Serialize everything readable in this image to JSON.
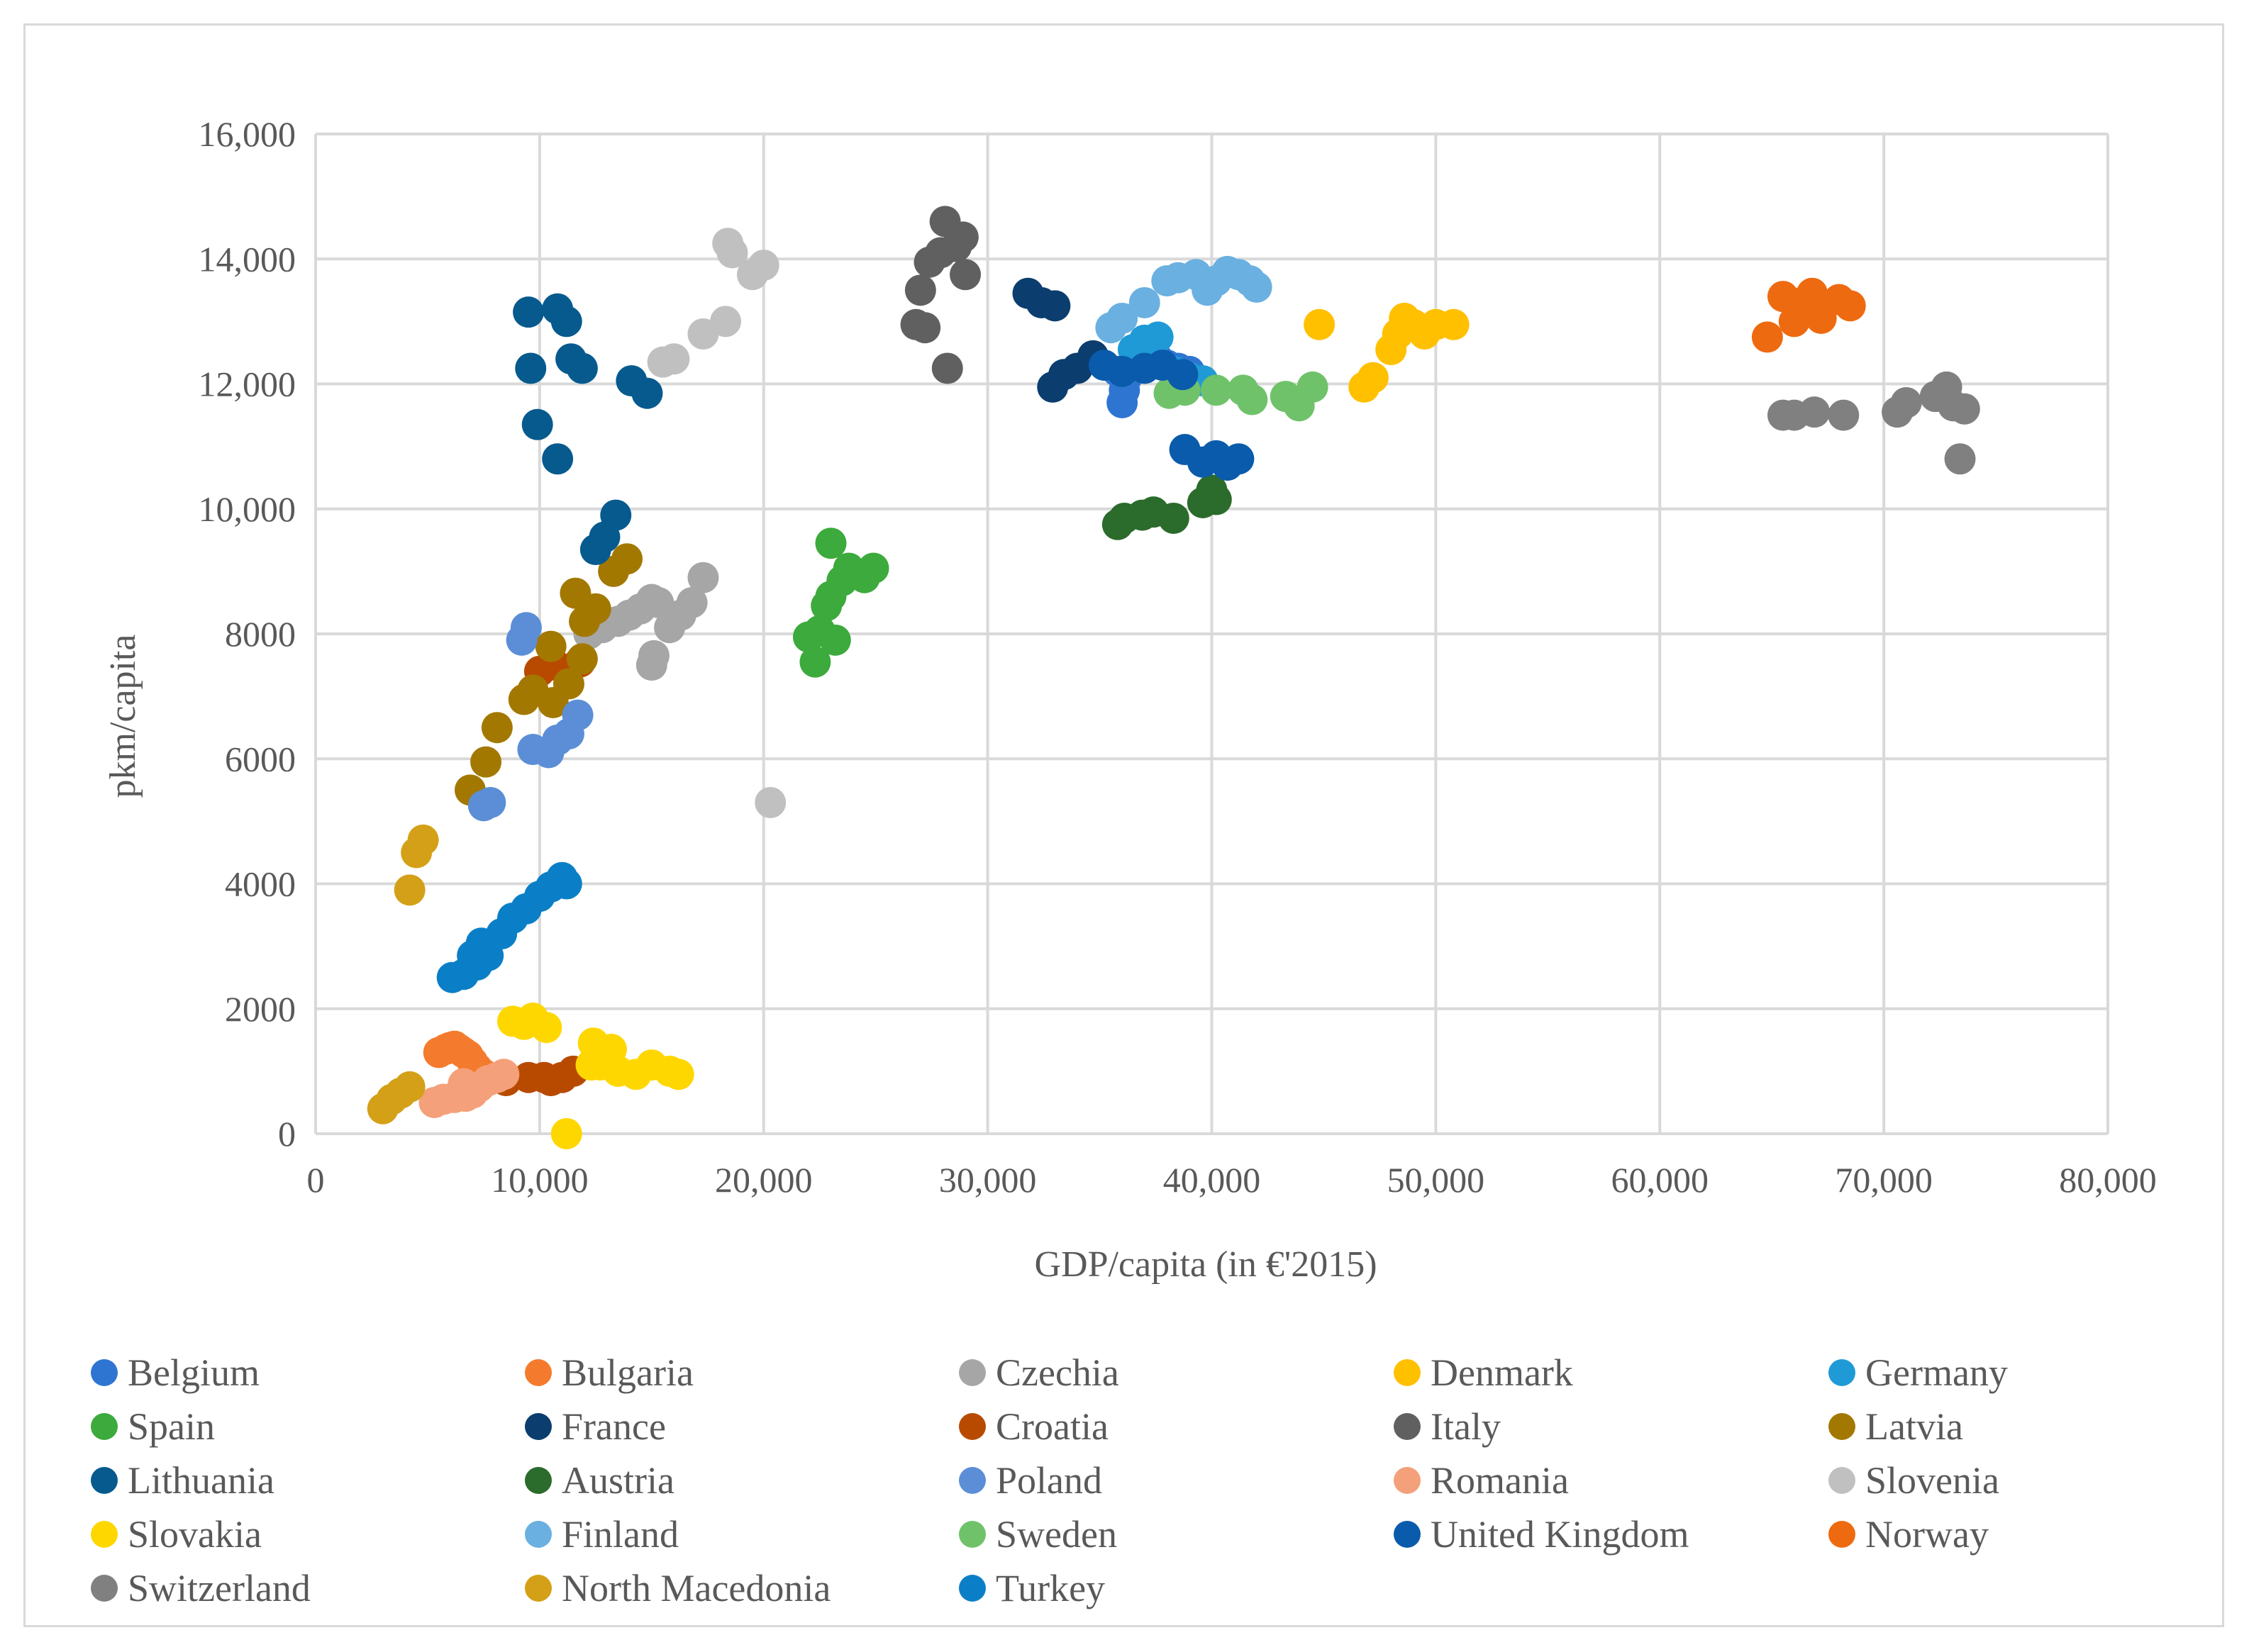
{
  "chart_data": {
    "type": "scatter",
    "title": "",
    "xlabel": "GDP/capita (in €'2015)",
    "ylabel": "pkm/capita",
    "xlim": [
      0,
      80000
    ],
    "ylim": [
      0,
      16000
    ],
    "grid": true,
    "legend_position": "bottom",
    "x_ticks": [
      {
        "value": 0,
        "label": "0"
      },
      {
        "value": 10000,
        "label": "10,000"
      },
      {
        "value": 20000,
        "label": "20,000"
      },
      {
        "value": 30000,
        "label": "30,000"
      },
      {
        "value": 40000,
        "label": "40,000"
      },
      {
        "value": 50000,
        "label": "50,000"
      },
      {
        "value": 60000,
        "label": "60,000"
      },
      {
        "value": 70000,
        "label": "70,000"
      },
      {
        "value": 80000,
        "label": "80,000"
      }
    ],
    "y_ticks": [
      {
        "value": 0,
        "label": "0"
      },
      {
        "value": 2000,
        "label": "2000"
      },
      {
        "value": 4000,
        "label": "4000"
      },
      {
        "value": 6000,
        "label": "6000"
      },
      {
        "value": 8000,
        "label": "8000"
      },
      {
        "value": 10000,
        "label": "10,000"
      },
      {
        "value": 12000,
        "label": "12,000"
      },
      {
        "value": 14000,
        "label": "14,000"
      },
      {
        "value": 16000,
        "label": "16,000"
      }
    ],
    "series": [
      {
        "name": "Belgium",
        "color": "#2e75d2",
        "points": [
          [
            36000,
            11700
          ],
          [
            36100,
            11900
          ],
          [
            36200,
            12100
          ],
          [
            36400,
            12250
          ],
          [
            36800,
            12300
          ],
          [
            37200,
            12350
          ],
          [
            37600,
            12400
          ],
          [
            38000,
            12300
          ],
          [
            38500,
            12250
          ],
          [
            39000,
            12200
          ],
          [
            35800,
            12200
          ]
        ]
      },
      {
        "name": "Bulgaria",
        "color": "#f47b2e",
        "points": [
          [
            5500,
            1300
          ],
          [
            5800,
            1350
          ],
          [
            6000,
            1380
          ],
          [
            6200,
            1400
          ],
          [
            6400,
            1350
          ],
          [
            6600,
            1300
          ],
          [
            6800,
            1250
          ],
          [
            7000,
            1150
          ],
          [
            7200,
            1050
          ],
          [
            7500,
            950
          ]
        ]
      },
      {
        "name": "Czechia",
        "color": "#a6a6a6",
        "points": [
          [
            12200,
            8000
          ],
          [
            12800,
            8100
          ],
          [
            13500,
            8200
          ],
          [
            14000,
            8300
          ],
          [
            14500,
            8400
          ],
          [
            15000,
            8550
          ],
          [
            15300,
            8500
          ],
          [
            15100,
            7650
          ],
          [
            15000,
            7500
          ],
          [
            15800,
            8100
          ],
          [
            16300,
            8300
          ],
          [
            16800,
            8500
          ],
          [
            17300,
            8900
          ]
        ]
      },
      {
        "name": "Denmark",
        "color": "#ffc000",
        "points": [
          [
            44800,
            12950
          ],
          [
            46800,
            11950
          ],
          [
            47200,
            12100
          ],
          [
            48000,
            12550
          ],
          [
            48300,
            12800
          ],
          [
            48600,
            13050
          ],
          [
            49000,
            12950
          ],
          [
            49500,
            12800
          ],
          [
            50000,
            12950
          ],
          [
            50800,
            12950
          ]
        ]
      },
      {
        "name": "Germany",
        "color": "#1f9ad6",
        "points": [
          [
            36500,
            12550
          ],
          [
            37000,
            12700
          ],
          [
            37600,
            12750
          ],
          [
            38300,
            12200
          ],
          [
            39000,
            12100
          ],
          [
            39600,
            12050
          ]
        ]
      },
      {
        "name": "Spain",
        "color": "#3caa3c",
        "points": [
          [
            22000,
            7950
          ],
          [
            22300,
            7550
          ],
          [
            22500,
            8050
          ],
          [
            22800,
            8450
          ],
          [
            23000,
            8600
          ],
          [
            23200,
            7900
          ],
          [
            23500,
            8850
          ],
          [
            23800,
            9050
          ],
          [
            24500,
            8900
          ],
          [
            24900,
            9050
          ],
          [
            23000,
            9450
          ]
        ]
      },
      {
        "name": "France",
        "color": "#0b3d6e",
        "points": [
          [
            31800,
            13450
          ],
          [
            32400,
            13300
          ],
          [
            33000,
            13250
          ],
          [
            32900,
            11950
          ],
          [
            33400,
            12150
          ],
          [
            34000,
            12250
          ],
          [
            34700,
            12450
          ]
        ]
      },
      {
        "name": "Croatia",
        "color": "#b84a00",
        "points": [
          [
            8500,
            850
          ],
          [
            9500,
            900
          ],
          [
            10200,
            900
          ],
          [
            10500,
            850
          ],
          [
            11000,
            900
          ],
          [
            11500,
            1000
          ],
          [
            10000,
            7400
          ],
          [
            10700,
            7500
          ],
          [
            11800,
            7550
          ]
        ]
      },
      {
        "name": "Italy",
        "color": "#606060",
        "points": [
          [
            26800,
            12950
          ],
          [
            27200,
            12900
          ],
          [
            27000,
            13500
          ],
          [
            27400,
            13950
          ],
          [
            27900,
            14100
          ],
          [
            28100,
            14600
          ],
          [
            28600,
            14200
          ],
          [
            29000,
            13750
          ],
          [
            28900,
            14350
          ],
          [
            28200,
            12250
          ]
        ]
      },
      {
        "name": "Latvia",
        "color": "#a37800",
        "points": [
          [
            6900,
            5500
          ],
          [
            7600,
            5950
          ],
          [
            8100,
            6500
          ],
          [
            9300,
            6950
          ],
          [
            9700,
            7100
          ],
          [
            10600,
            6900
          ],
          [
            11300,
            7200
          ],
          [
            10500,
            7800
          ],
          [
            11600,
            8650
          ],
          [
            12000,
            8200
          ],
          [
            12500,
            8400
          ],
          [
            13300,
            9000
          ],
          [
            13900,
            9200
          ],
          [
            11900,
            7600
          ]
        ]
      },
      {
        "name": "Lithuania",
        "color": "#065a8e",
        "points": [
          [
            9500,
            13150
          ],
          [
            10800,
            13200
          ],
          [
            11200,
            13000
          ],
          [
            11400,
            12400
          ],
          [
            11900,
            12250
          ],
          [
            9600,
            12250
          ],
          [
            9900,
            11350
          ],
          [
            10800,
            10800
          ],
          [
            14100,
            12050
          ],
          [
            14800,
            11850
          ],
          [
            12500,
            9350
          ],
          [
            12900,
            9550
          ],
          [
            13400,
            9900
          ]
        ]
      },
      {
        "name": "Austria",
        "color": "#2b6b2b",
        "points": [
          [
            35800,
            9750
          ],
          [
            36100,
            9850
          ],
          [
            36900,
            9900
          ],
          [
            37400,
            9950
          ],
          [
            38300,
            9850
          ],
          [
            39600,
            10100
          ],
          [
            40200,
            10150
          ],
          [
            40000,
            10300
          ]
        ]
      },
      {
        "name": "Poland",
        "color": "#5b8ed6",
        "points": [
          [
            7500,
            5250
          ],
          [
            7800,
            5300
          ],
          [
            9200,
            7900
          ],
          [
            9400,
            8100
          ],
          [
            9700,
            6150
          ],
          [
            10400,
            6100
          ],
          [
            10800,
            6300
          ],
          [
            11300,
            6400
          ],
          [
            11700,
            6700
          ]
        ]
      },
      {
        "name": "Romania",
        "color": "#f4a07a",
        "points": [
          [
            5300,
            500
          ],
          [
            5700,
            550
          ],
          [
            6200,
            580
          ],
          [
            6700,
            600
          ],
          [
            7000,
            650
          ],
          [
            7300,
            750
          ],
          [
            7700,
            850
          ],
          [
            8100,
            900
          ],
          [
            8400,
            950
          ],
          [
            6600,
            800
          ]
        ]
      },
      {
        "name": "Slovenia",
        "color": "#c0c0c0",
        "points": [
          [
            15500,
            12350
          ],
          [
            16000,
            12400
          ],
          [
            17300,
            12800
          ],
          [
            18300,
            13000
          ],
          [
            18400,
            14250
          ],
          [
            18600,
            14100
          ],
          [
            19500,
            13750
          ],
          [
            20000,
            13900
          ],
          [
            20300,
            5300
          ]
        ]
      },
      {
        "name": "Slovakia",
        "color": "#ffd700",
        "points": [
          [
            8800,
            1800
          ],
          [
            9300,
            1750
          ],
          [
            9700,
            1850
          ],
          [
            10300,
            1700
          ],
          [
            11200,
            0
          ],
          [
            12400,
            1450
          ],
          [
            12700,
            1100
          ],
          [
            13200,
            1350
          ],
          [
            13500,
            1000
          ],
          [
            14300,
            950
          ],
          [
            15000,
            1100
          ],
          [
            15800,
            1000
          ],
          [
            16200,
            950
          ],
          [
            12300,
            1100
          ]
        ]
      },
      {
        "name": "Finland",
        "color": "#6ab0e0",
        "points": [
          [
            35500,
            12900
          ],
          [
            36000,
            13050
          ],
          [
            37000,
            13300
          ],
          [
            38000,
            13650
          ],
          [
            38500,
            13700
          ],
          [
            39300,
            13750
          ],
          [
            40200,
            13650
          ],
          [
            40700,
            13800
          ],
          [
            41200,
            13750
          ],
          [
            41700,
            13650
          ],
          [
            42000,
            13550
          ],
          [
            39800,
            13500
          ]
        ]
      },
      {
        "name": "Sweden",
        "color": "#70c26a",
        "points": [
          [
            38100,
            11850
          ],
          [
            38800,
            11900
          ],
          [
            40200,
            11900
          ],
          [
            41400,
            11900
          ],
          [
            41800,
            11750
          ],
          [
            43300,
            11800
          ],
          [
            43900,
            11650
          ],
          [
            44500,
            11950
          ]
        ]
      },
      {
        "name": "United Kingdom",
        "color": "#0a5bab",
        "points": [
          [
            35200,
            12300
          ],
          [
            36000,
            12200
          ],
          [
            37000,
            12250
          ],
          [
            37800,
            12300
          ],
          [
            38700,
            12150
          ],
          [
            38800,
            10950
          ],
          [
            39600,
            10750
          ],
          [
            40200,
            10850
          ],
          [
            40700,
            10700
          ],
          [
            41200,
            10800
          ]
        ]
      },
      {
        "name": "Norway",
        "color": "#ee6a10",
        "points": [
          [
            64800,
            12750
          ],
          [
            65500,
            13400
          ],
          [
            66000,
            13000
          ],
          [
            66300,
            13300
          ],
          [
            66800,
            13450
          ],
          [
            67200,
            13050
          ],
          [
            68000,
            13350
          ],
          [
            68500,
            13250
          ]
        ]
      },
      {
        "name": "Switzerland",
        "color": "#808080",
        "points": [
          [
            65500,
            11500
          ],
          [
            66000,
            11500
          ],
          [
            66900,
            11550
          ],
          [
            68200,
            11500
          ],
          [
            70600,
            11550
          ],
          [
            71000,
            11700
          ],
          [
            72300,
            11800
          ],
          [
            72800,
            11950
          ],
          [
            73100,
            11650
          ],
          [
            73600,
            11600
          ],
          [
            73400,
            10800
          ]
        ]
      },
      {
        "name": "North Macedonia",
        "color": "#d4a017",
        "points": [
          [
            3000,
            400
          ],
          [
            3400,
            550
          ],
          [
            3800,
            650
          ],
          [
            4200,
            750
          ],
          [
            4200,
            3900
          ],
          [
            4500,
            4500
          ],
          [
            4800,
            4700
          ]
        ]
      },
      {
        "name": "Turkey",
        "color": "#0a7fc7",
        "points": [
          [
            6100,
            2500
          ],
          [
            6600,
            2550
          ],
          [
            7000,
            2850
          ],
          [
            7400,
            3050
          ],
          [
            7700,
            2850
          ],
          [
            8300,
            3200
          ],
          [
            8800,
            3450
          ],
          [
            9400,
            3600
          ],
          [
            10000,
            3800
          ],
          [
            10500,
            3950
          ],
          [
            11000,
            4100
          ],
          [
            11200,
            4000
          ],
          [
            7200,
            2700
          ]
        ]
      }
    ]
  }
}
